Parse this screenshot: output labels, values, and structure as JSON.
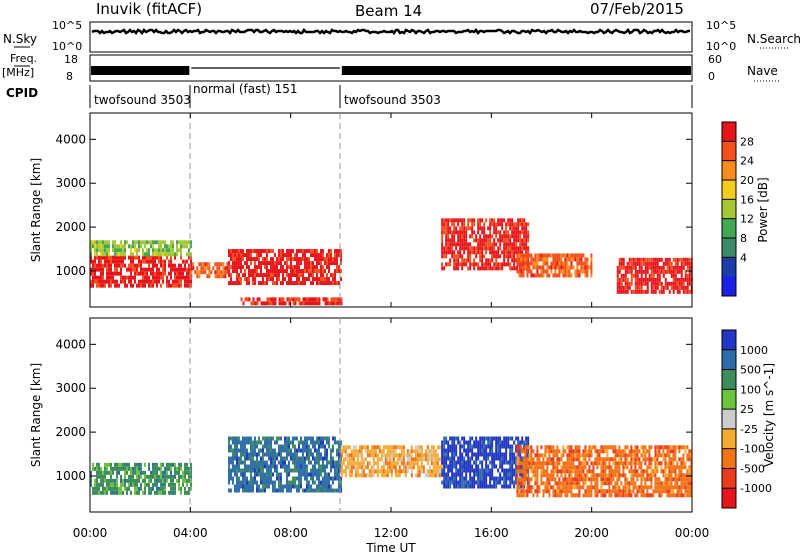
{
  "header": {
    "station": "Inuvik (fitACF)",
    "beam": "Beam 14",
    "date": "07/Feb/2015"
  },
  "top_panels": {
    "nsky_label": "N.Sky",
    "nsky_ticks": [
      "10^5",
      "10^0"
    ],
    "nsearch_label": "N.Search",
    "freq_label_1": "Freq.",
    "freq_label_2": "[MHz]",
    "freq_ticks": [
      "18",
      "8"
    ],
    "nave_label": "Nave",
    "nave_ticks": [
      "60",
      "0"
    ],
    "cpid_label": "CPID",
    "cpid_segments": [
      {
        "label": "twofsound 3503",
        "start_hour": 0,
        "end_hour": 4
      },
      {
        "label": "normal (fast) 151",
        "start_hour": 4,
        "end_hour": 10
      },
      {
        "label": "twofsound 3503",
        "start_hour": 10,
        "end_hour": 24
      }
    ]
  },
  "chart_data": [
    {
      "type": "heatmap",
      "title": "Power",
      "ylabel": "Slant Range [km]",
      "xlabel": "Time UT",
      "xlim": [
        0,
        24
      ],
      "ylim": [
        180,
        4600
      ],
      "x_ticks": [
        "00:00",
        "04:00",
        "08:00",
        "12:00",
        "16:00",
        "20:00",
        "00:00"
      ],
      "y_ticks": [
        "1000",
        "2000",
        "3000",
        "4000"
      ],
      "colorbar": {
        "label": "Power [dB]",
        "ticks": [
          "28",
          "24",
          "20",
          "16",
          "12",
          "8",
          "4"
        ],
        "colors": [
          "#e8141c",
          "#f4501c",
          "#fa8c1c",
          "#f2cd1c",
          "#a6c836",
          "#42a853",
          "#3c8a6c",
          "#1c3ca8",
          "#1c20e6"
        ]
      },
      "series": [
        {
          "x_range": [
            0,
            4
          ],
          "y_range": [
            650,
            1350
          ],
          "value_db": 28
        },
        {
          "x_range": [
            0,
            4
          ],
          "y_range": [
            1350,
            1700
          ],
          "value_db": 12
        },
        {
          "x_range": [
            4,
            5.5
          ],
          "y_range": [
            900,
            1200
          ],
          "value_db": 24
        },
        {
          "x_range": [
            5.5,
            10
          ],
          "y_range": [
            700,
            1500
          ],
          "value_db": 28
        },
        {
          "x_range": [
            6,
            10
          ],
          "y_range": [
            230,
            400
          ],
          "value_db": 28
        },
        {
          "x_range": [
            14,
            17.5
          ],
          "y_range": [
            1100,
            2200
          ],
          "value_db": 28
        },
        {
          "x_range": [
            17,
            20
          ],
          "y_range": [
            900,
            1400
          ],
          "value_db": 24
        },
        {
          "x_range": [
            21,
            24
          ],
          "y_range": [
            500,
            1300
          ],
          "value_db": 28
        }
      ]
    },
    {
      "type": "heatmap",
      "title": "Velocity",
      "ylabel": "Slant Range [km]",
      "xlabel": "Time UT",
      "xlim": [
        0,
        24
      ],
      "ylim": [
        180,
        4600
      ],
      "x_ticks": [
        "00:00",
        "04:00",
        "08:00",
        "12:00",
        "16:00",
        "20:00",
        "00:00"
      ],
      "y_ticks": [
        "1000",
        "2000",
        "3000",
        "4000"
      ],
      "colorbar": {
        "label": "Velocity [m s^-1]",
        "ticks": [
          "1000",
          "500",
          "100",
          "25",
          "-25",
          "-100",
          "-500",
          "-1000"
        ],
        "colors": [
          "#2136c4",
          "#2e6ea8",
          "#3d8c5c",
          "#6cc43c",
          "#cccccc",
          "#f5aa32",
          "#f27216",
          "#ec3a1c",
          "#e8141c"
        ]
      },
      "series": [
        {
          "x_range": [
            0,
            4
          ],
          "y_range": [
            600,
            1300
          ],
          "value_ms": 100
        },
        {
          "x_range": [
            5.5,
            10
          ],
          "y_range": [
            700,
            1900
          ],
          "value_ms": 500
        },
        {
          "x_range": [
            10,
            14
          ],
          "y_range": [
            1000,
            1700
          ],
          "value_ms": -100
        },
        {
          "x_range": [
            14,
            17.5
          ],
          "y_range": [
            800,
            1900
          ],
          "value_ms": 1000
        },
        {
          "x_range": [
            17,
            24
          ],
          "y_range": [
            600,
            1700
          ],
          "value_ms": -500
        }
      ]
    }
  ]
}
